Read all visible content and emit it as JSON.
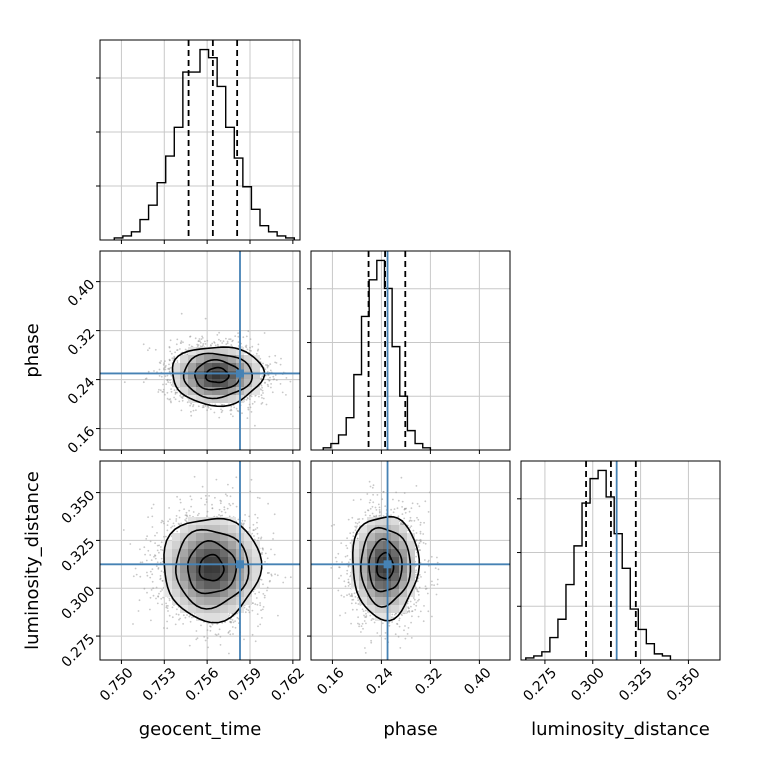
{
  "chart_data": {
    "type": "corner",
    "parameters": [
      "geocent_time",
      "phase",
      "luminosity_distance"
    ],
    "axis_labels": {
      "geocent_time": "geocent_time",
      "phase": "phase",
      "luminosity_distance": "luminosity_distance"
    },
    "ranges": {
      "geocent_time": [
        0.7485,
        0.7625
      ],
      "phase": [
        0.125,
        0.45
      ],
      "luminosity_distance": [
        0.2625,
        0.3665
      ]
    },
    "ticks": {
      "geocent_time": [
        {
          "value": 0.75,
          "label": "0.750"
        },
        {
          "value": 0.753,
          "label": "0.753"
        },
        {
          "value": 0.756,
          "label": "0.756"
        },
        {
          "value": 0.759,
          "label": "0.759"
        },
        {
          "value": 0.762,
          "label": "0.762"
        }
      ],
      "phase": [
        {
          "value": 0.16,
          "label": "0.16"
        },
        {
          "value": 0.24,
          "label": "0.24"
        },
        {
          "value": 0.32,
          "label": "0.32"
        },
        {
          "value": 0.4,
          "label": "0.40"
        }
      ],
      "luminosity_distance": [
        {
          "value": 0.275,
          "label": "0.275"
        },
        {
          "value": 0.3,
          "label": "0.300"
        },
        {
          "value": 0.325,
          "label": "0.325"
        },
        {
          "value": 0.35,
          "label": "0.350"
        }
      ]
    },
    "truths": {
      "geocent_time": 0.7583,
      "phase": 0.25,
      "luminosity_distance": 0.3125
    },
    "quantiles": {
      "geocent_time": [
        0.7547,
        0.7564,
        0.7581
      ],
      "phase": [
        0.219,
        0.246,
        0.279
      ],
      "luminosity_distance": [
        0.2965,
        0.3095,
        0.3225
      ]
    },
    "histograms": {
      "geocent_time": {
        "start": 0.7495,
        "bin_width": 0.0006,
        "counts": [
          1,
          2,
          4,
          10,
          17,
          28,
          41,
          55,
          82,
          82,
          93,
          89,
          75,
          55,
          40,
          26,
          15,
          7,
          4,
          2,
          1
        ]
      },
      "phase": {
        "start": 0.145,
        "bin_width": 0.0125,
        "counts": [
          1,
          3,
          7,
          15,
          35,
          62,
          79,
          88,
          75,
          48,
          25,
          9,
          3,
          1
        ]
      },
      "luminosity_distance": {
        "start": 0.265,
        "bin_width": 0.0042,
        "counts": [
          1,
          2,
          4,
          11,
          20,
          37,
          56,
          77,
          89,
          93,
          80,
          62,
          45,
          25,
          15,
          8,
          3,
          2
        ]
      }
    },
    "posterior_2d": {
      "phase_vs_geocent_time": {
        "x": "geocent_time",
        "y": "phase",
        "center": [
          0.7567,
          0.247
        ],
        "sigma": [
          0.0016,
          0.024
        ],
        "contour_levels_sigma": [
          0.5,
          1.0,
          1.5,
          2.0
        ]
      },
      "luminosity_distance_vs_geocent_time": {
        "x": "geocent_time",
        "y": "luminosity_distance",
        "center": [
          0.7563,
          0.3105
        ],
        "sigma": [
          0.0017,
          0.0135
        ],
        "contour_levels_sigma": [
          0.5,
          1.0,
          1.5,
          2.0
        ]
      },
      "luminosity_distance_vs_phase": {
        "x": "phase",
        "y": "luminosity_distance",
        "center": [
          0.246,
          0.3115
        ],
        "sigma": [
          0.027,
          0.0135
        ],
        "contour_levels_sigma": [
          0.5,
          1.0,
          1.5,
          2.0
        ]
      }
    },
    "grid": true,
    "colors": {
      "truth": "#4682b4",
      "histogram": "#000000",
      "quantile": "#000000",
      "scatter": "#9a9a9a",
      "grid": "#c8c8c8"
    }
  }
}
